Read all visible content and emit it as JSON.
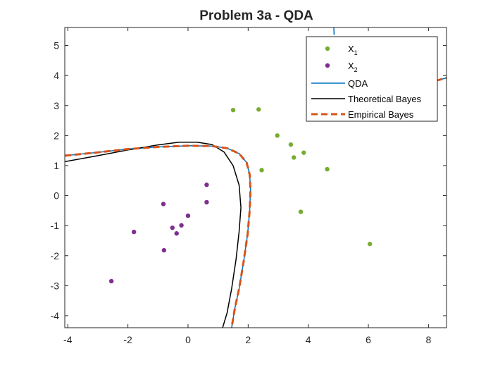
{
  "chart_data": {
    "type": "scatter",
    "title": "Problem 3a - QDA",
    "xlabel": "",
    "ylabel": "",
    "xlim": [
      -4.1,
      8.6
    ],
    "ylim": [
      -4.4,
      5.6
    ],
    "xticks": [
      -4,
      -2,
      0,
      2,
      4,
      6,
      8
    ],
    "yticks": [
      5,
      4,
      3,
      2,
      1,
      0,
      -1,
      -2,
      -3,
      -4
    ],
    "grid": false,
    "legend_position": "top-right",
    "series": [
      {
        "kind": "points",
        "name_main": "X",
        "name_sub": "1",
        "color": "#77AC30",
        "points": [
          [
            1.5,
            2.85
          ],
          [
            2.35,
            2.87
          ],
          [
            2.45,
            0.85
          ],
          [
            2.97,
            2.0
          ],
          [
            3.42,
            1.7
          ],
          [
            3.52,
            1.27
          ],
          [
            3.85,
            1.43
          ],
          [
            3.75,
            -0.54
          ],
          [
            4.63,
            0.88
          ],
          [
            6.05,
            -1.61
          ]
        ]
      },
      {
        "kind": "points",
        "name_main": "X",
        "name_sub": "2",
        "color": "#7E2F8E",
        "points": [
          [
            -2.55,
            -2.85
          ],
          [
            -1.8,
            -1.21
          ],
          [
            -0.82,
            -0.28
          ],
          [
            -0.8,
            -1.82
          ],
          [
            -0.52,
            -1.07
          ],
          [
            -0.38,
            -1.26
          ],
          [
            -0.22,
            -0.99
          ],
          [
            0.0,
            -0.67
          ],
          [
            0.62,
            0.36
          ],
          [
            0.62,
            -0.22
          ]
        ]
      },
      {
        "kind": "line",
        "name": "QDA",
        "color": "#0072BD",
        "width": 1.5,
        "dash": "",
        "curves": [
          [
            [
              -4.1,
              1.33
            ],
            [
              -3.0,
              1.44
            ],
            [
              -2.0,
              1.55
            ],
            [
              -1.0,
              1.62
            ],
            [
              0.0,
              1.66
            ],
            [
              0.8,
              1.65
            ],
            [
              1.3,
              1.58
            ],
            [
              1.7,
              1.4
            ],
            [
              1.95,
              1.1
            ],
            [
              2.05,
              0.7
            ],
            [
              2.08,
              0.2
            ],
            [
              2.05,
              -0.5
            ],
            [
              1.98,
              -1.3
            ],
            [
              1.85,
              -2.2
            ],
            [
              1.7,
              -3.1
            ],
            [
              1.55,
              -3.8
            ],
            [
              1.45,
              -4.4
            ]
          ],
          [
            [
              4.85,
              5.6
            ],
            [
              4.86,
              5.35
            ]
          ],
          [
            [
              8.25,
              3.83
            ],
            [
              8.6,
              3.92
            ]
          ]
        ]
      },
      {
        "kind": "line",
        "name": "Theoretical Bayes",
        "color": "#000000",
        "width": 1.5,
        "dash": "",
        "curves": [
          [
            [
              -4.1,
              1.13
            ],
            [
              -3.0,
              1.33
            ],
            [
              -2.0,
              1.52
            ],
            [
              -1.0,
              1.69
            ],
            [
              -0.3,
              1.78
            ],
            [
              0.3,
              1.78
            ],
            [
              0.8,
              1.7
            ],
            [
              1.2,
              1.45
            ],
            [
              1.5,
              1.0
            ],
            [
              1.7,
              0.35
            ],
            [
              1.76,
              -0.4
            ],
            [
              1.7,
              -1.2
            ],
            [
              1.6,
              -2.1
            ],
            [
              1.45,
              -3.1
            ],
            [
              1.3,
              -3.9
            ],
            [
              1.15,
              -4.4
            ]
          ]
        ]
      },
      {
        "kind": "line",
        "name": "Empirical Bayes",
        "color": "#D95319",
        "width": 3,
        "dash": "9,5",
        "curves": [
          [
            [
              -4.1,
              1.33
            ],
            [
              -3.0,
              1.44
            ],
            [
              -2.0,
              1.55
            ],
            [
              -1.0,
              1.62
            ],
            [
              0.0,
              1.66
            ],
            [
              0.8,
              1.65
            ],
            [
              1.3,
              1.58
            ],
            [
              1.7,
              1.4
            ],
            [
              1.95,
              1.1
            ],
            [
              2.05,
              0.7
            ],
            [
              2.08,
              0.2
            ],
            [
              2.05,
              -0.5
            ],
            [
              1.98,
              -1.3
            ],
            [
              1.85,
              -2.2
            ],
            [
              1.7,
              -3.1
            ],
            [
              1.55,
              -3.8
            ],
            [
              1.45,
              -4.4
            ]
          ],
          [
            [
              8.25,
              3.83
            ],
            [
              8.6,
              3.92
            ]
          ]
        ]
      }
    ]
  }
}
